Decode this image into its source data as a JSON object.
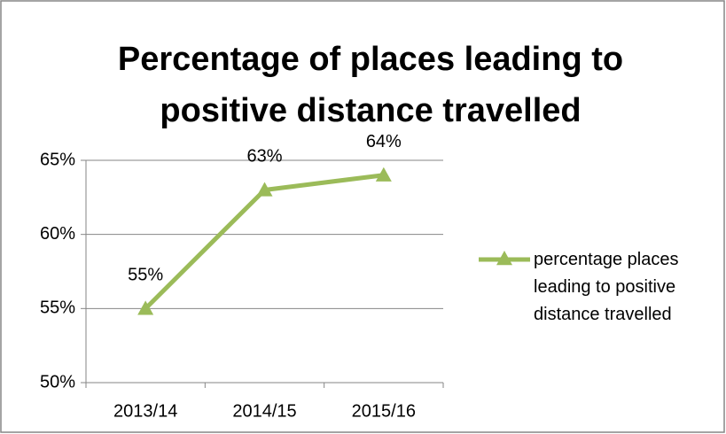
{
  "chart_data": {
    "type": "line",
    "title": "Percentage of places leading to positive distance travelled",
    "categories": [
      "2013/14",
      "2014/15",
      "2015/16"
    ],
    "series": [
      {
        "name": "percentage places leading to positive distance travelled",
        "color": "#9bbb59",
        "values": [
          55,
          63,
          64
        ],
        "value_labels": [
          "55%",
          "63%",
          "64%"
        ]
      }
    ],
    "ylim": [
      50,
      65
    ],
    "yticks": [
      {
        "value": 50,
        "label": "50%"
      },
      {
        "value": 55,
        "label": "55%"
      },
      {
        "value": 60,
        "label": "60%"
      },
      {
        "value": 65,
        "label": "65%"
      }
    ],
    "grid": true,
    "legend": "right"
  }
}
